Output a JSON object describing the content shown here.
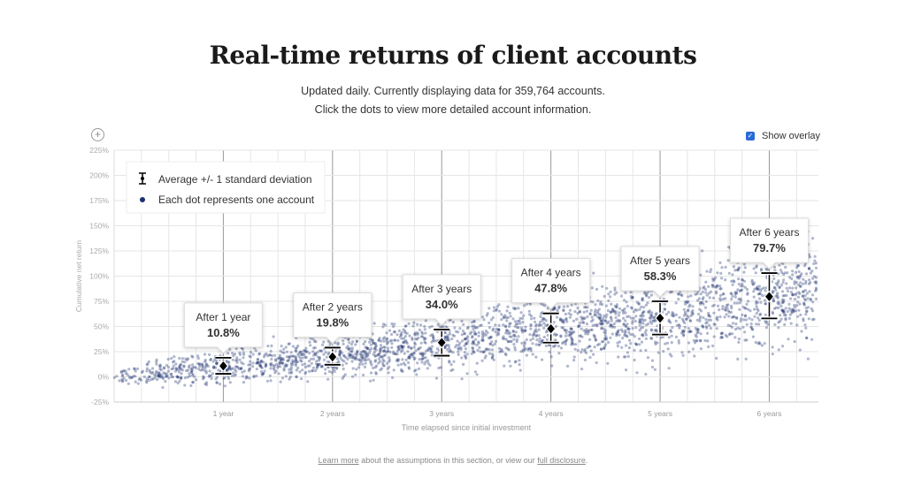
{
  "title": "Real-time returns of client accounts",
  "subtitle1": "Updated daily. Currently displaying data for 359,764 accounts.",
  "subtitle2": "Click the dots to view more detailed account information.",
  "zoom_icon": "+",
  "overlay_label": "Show overlay",
  "overlay_checked": true,
  "footer": {
    "link1": "Learn more",
    "text": " about the assumptions in this section, or view our ",
    "link2": "full disclosure",
    "end": "."
  },
  "chart_data": {
    "type": "scatter",
    "xlabel": "Time elapsed since initial investment",
    "ylabel": "Cumulative net return",
    "xlim": [
      0,
      6.45
    ],
    "ylim": [
      -25,
      225
    ],
    "yticks": [
      "-25%",
      "0%",
      "25%",
      "50%",
      "75%",
      "100%",
      "125%",
      "150%",
      "175%",
      "200%",
      "225%"
    ],
    "xticks": [
      "1 year",
      "2 years",
      "3 years",
      "4 years",
      "5 years",
      "6 years"
    ],
    "legend": {
      "placement": "top-left",
      "items": [
        "Average +/- 1 standard deviation",
        "Each dot represents one account"
      ]
    },
    "dot_color": "#1c3170",
    "summary": [
      {
        "year": 1,
        "label": "After 1 year",
        "value": "10.8%",
        "mean": 10.8,
        "low": 3,
        "high": 19
      },
      {
        "year": 2,
        "label": "After 2 years",
        "value": "19.8%",
        "mean": 19.8,
        "low": 12,
        "high": 29
      },
      {
        "year": 3,
        "label": "After 3 years",
        "value": "34.0%",
        "mean": 34.0,
        "low": 21,
        "high": 47
      },
      {
        "year": 4,
        "label": "After 4 years",
        "value": "47.8%",
        "mean": 47.8,
        "low": 34,
        "high": 63
      },
      {
        "year": 5,
        "label": "After 5 years",
        "value": "58.3%",
        "mean": 58.3,
        "low": 42,
        "high": 75
      },
      {
        "year": 6,
        "label": "After 6 years",
        "value": "79.7%",
        "mean": 79.7,
        "low": 58,
        "high": 103
      }
    ]
  }
}
